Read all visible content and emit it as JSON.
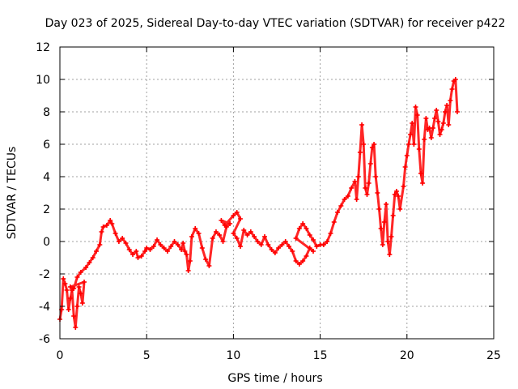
{
  "chart_data": {
    "type": "scatter",
    "title": "Day 023 of 2025, Sidereal Day-to-day VTEC variation (SDTVAR) for receiver p422",
    "xlabel": "GPS time / hours",
    "ylabel": "SDTVAR / TECUs",
    "xlim": [
      0,
      25
    ],
    "ylim": [
      -6,
      12
    ],
    "xticks": [
      0,
      5,
      10,
      15,
      20,
      25
    ],
    "yticks": [
      -6,
      -4,
      -2,
      0,
      2,
      4,
      6,
      8,
      10,
      12
    ],
    "grid": true,
    "marker": "+",
    "colors": {
      "series": "#ff0000",
      "axis": "#000000",
      "grid": "#a0a0a0"
    },
    "series": [
      {
        "points": [
          [
            0.0,
            -4.8
          ],
          [
            0.1,
            -4.2
          ],
          [
            0.2,
            -2.3
          ],
          [
            0.3,
            -2.6
          ],
          [
            0.4,
            -3.0
          ],
          [
            0.5,
            -4.2
          ],
          [
            0.6,
            -3.5
          ],
          [
            0.7,
            -3.0
          ],
          [
            0.8,
            -4.6
          ],
          [
            0.9,
            -5.3
          ],
          [
            1.0,
            -4.0
          ],
          [
            1.1,
            -2.8
          ],
          [
            1.2,
            -3.2
          ],
          [
            1.3,
            -3.8
          ],
          [
            1.4,
            -2.5
          ],
          [
            0.6,
            -2.8
          ],
          [
            0.8,
            -2.9
          ],
          [
            1.0,
            -2.2
          ],
          [
            1.2,
            -1.9
          ],
          [
            1.5,
            -1.6
          ],
          [
            1.7,
            -1.3
          ],
          [
            1.9,
            -1.0
          ],
          [
            2.1,
            -0.6
          ],
          [
            2.3,
            -0.2
          ],
          [
            2.4,
            0.6
          ],
          [
            2.5,
            0.9
          ],
          [
            2.7,
            1.0
          ],
          [
            2.9,
            1.3
          ],
          [
            3.0,
            1.1
          ],
          [
            3.2,
            0.5
          ],
          [
            3.4,
            0.0
          ],
          [
            3.6,
            0.2
          ],
          [
            3.8,
            -0.1
          ],
          [
            4.0,
            -0.5
          ],
          [
            4.2,
            -0.8
          ],
          [
            4.4,
            -0.6
          ],
          [
            4.5,
            -1.0
          ],
          [
            4.7,
            -0.9
          ],
          [
            4.9,
            -0.6
          ],
          [
            5.0,
            -0.4
          ],
          [
            5.2,
            -0.5
          ],
          [
            5.4,
            -0.3
          ],
          [
            5.6,
            0.1
          ],
          [
            5.8,
            -0.2
          ],
          [
            6.0,
            -0.4
          ],
          [
            6.2,
            -0.6
          ],
          [
            6.4,
            -0.3
          ],
          [
            6.6,
            0.0
          ],
          [
            6.8,
            -0.2
          ],
          [
            7.0,
            -0.5
          ],
          [
            7.1,
            -0.1
          ],
          [
            7.2,
            -0.6
          ],
          [
            7.3,
            -0.8
          ],
          [
            7.4,
            -1.8
          ],
          [
            7.5,
            -1.2
          ],
          [
            7.6,
            0.3
          ],
          [
            7.8,
            0.8
          ],
          [
            8.0,
            0.5
          ],
          [
            8.2,
            -0.4
          ],
          [
            8.4,
            -1.1
          ],
          [
            8.6,
            -1.5
          ],
          [
            8.8,
            0.2
          ],
          [
            9.0,
            0.6
          ],
          [
            9.2,
            0.4
          ],
          [
            9.4,
            0.0
          ],
          [
            9.6,
            0.9
          ],
          [
            9.8,
            1.1
          ],
          [
            9.3,
            1.3
          ],
          [
            9.5,
            1.0
          ],
          [
            10.0,
            1.6
          ],
          [
            10.2,
            1.8
          ],
          [
            10.4,
            1.4
          ],
          [
            10.0,
            0.5
          ],
          [
            10.2,
            0.2
          ],
          [
            10.4,
            -0.3
          ],
          [
            10.6,
            0.7
          ],
          [
            10.8,
            0.4
          ],
          [
            11.0,
            0.6
          ],
          [
            11.2,
            0.3
          ],
          [
            11.4,
            0.0
          ],
          [
            11.6,
            -0.2
          ],
          [
            11.8,
            0.3
          ],
          [
            12.0,
            -0.2
          ],
          [
            12.2,
            -0.5
          ],
          [
            12.4,
            -0.7
          ],
          [
            12.6,
            -0.4
          ],
          [
            12.8,
            -0.2
          ],
          [
            13.0,
            0.0
          ],
          [
            13.2,
            -0.3
          ],
          [
            13.4,
            -0.6
          ],
          [
            13.6,
            -1.2
          ],
          [
            13.8,
            -1.4
          ],
          [
            14.0,
            -1.2
          ],
          [
            14.2,
            -0.9
          ],
          [
            14.4,
            -0.4
          ],
          [
            14.6,
            -0.6
          ],
          [
            13.6,
            0.2
          ],
          [
            13.8,
            0.8
          ],
          [
            14.0,
            1.1
          ],
          [
            14.2,
            0.8
          ],
          [
            14.4,
            0.4
          ],
          [
            14.6,
            0.1
          ],
          [
            14.8,
            -0.3
          ],
          [
            15.0,
            -0.2
          ],
          [
            15.2,
            -0.2
          ],
          [
            15.4,
            0.0
          ],
          [
            15.6,
            0.5
          ],
          [
            15.8,
            1.2
          ],
          [
            16.0,
            1.8
          ],
          [
            16.2,
            2.2
          ],
          [
            16.4,
            2.6
          ],
          [
            16.6,
            2.8
          ],
          [
            16.8,
            3.3
          ],
          [
            17.0,
            3.7
          ],
          [
            17.1,
            2.6
          ],
          [
            17.2,
            4.0
          ],
          [
            17.3,
            5.5
          ],
          [
            17.4,
            7.2
          ],
          [
            17.5,
            6.0
          ],
          [
            17.6,
            3.3
          ],
          [
            17.7,
            2.9
          ],
          [
            17.8,
            3.6
          ],
          [
            17.9,
            4.8
          ],
          [
            18.0,
            5.8
          ],
          [
            18.1,
            6.0
          ],
          [
            18.2,
            4.0
          ],
          [
            18.3,
            3.0
          ],
          [
            18.4,
            2.0
          ],
          [
            18.5,
            0.8
          ],
          [
            18.6,
            -0.2
          ],
          [
            18.7,
            1.2
          ],
          [
            18.8,
            2.3
          ],
          [
            18.9,
            0.0
          ],
          [
            19.0,
            -0.8
          ],
          [
            19.1,
            0.3
          ],
          [
            19.2,
            1.6
          ],
          [
            19.3,
            2.9
          ],
          [
            19.4,
            3.1
          ],
          [
            19.5,
            2.8
          ],
          [
            19.6,
            2.0
          ],
          [
            19.8,
            3.4
          ],
          [
            19.9,
            4.6
          ],
          [
            20.0,
            5.3
          ],
          [
            20.1,
            6.0
          ],
          [
            20.2,
            6.6
          ],
          [
            20.3,
            7.3
          ],
          [
            20.4,
            6.0
          ],
          [
            20.5,
            8.3
          ],
          [
            20.6,
            7.8
          ],
          [
            20.7,
            5.7
          ],
          [
            20.8,
            4.2
          ],
          [
            20.9,
            3.6
          ],
          [
            21.0,
            6.3
          ],
          [
            21.1,
            7.6
          ],
          [
            21.2,
            6.9
          ],
          [
            21.3,
            7.0
          ],
          [
            21.4,
            6.4
          ],
          [
            21.5,
            7.0
          ],
          [
            21.6,
            7.6
          ],
          [
            21.7,
            8.1
          ],
          [
            21.8,
            7.4
          ],
          [
            21.9,
            6.6
          ],
          [
            22.0,
            6.9
          ],
          [
            22.1,
            7.3
          ],
          [
            22.2,
            8.0
          ],
          [
            22.3,
            8.4
          ],
          [
            22.4,
            7.2
          ],
          [
            22.5,
            8.7
          ],
          [
            22.6,
            9.4
          ],
          [
            22.7,
            9.9
          ],
          [
            22.8,
            10.0
          ],
          [
            22.9,
            8.0
          ]
        ]
      }
    ]
  }
}
